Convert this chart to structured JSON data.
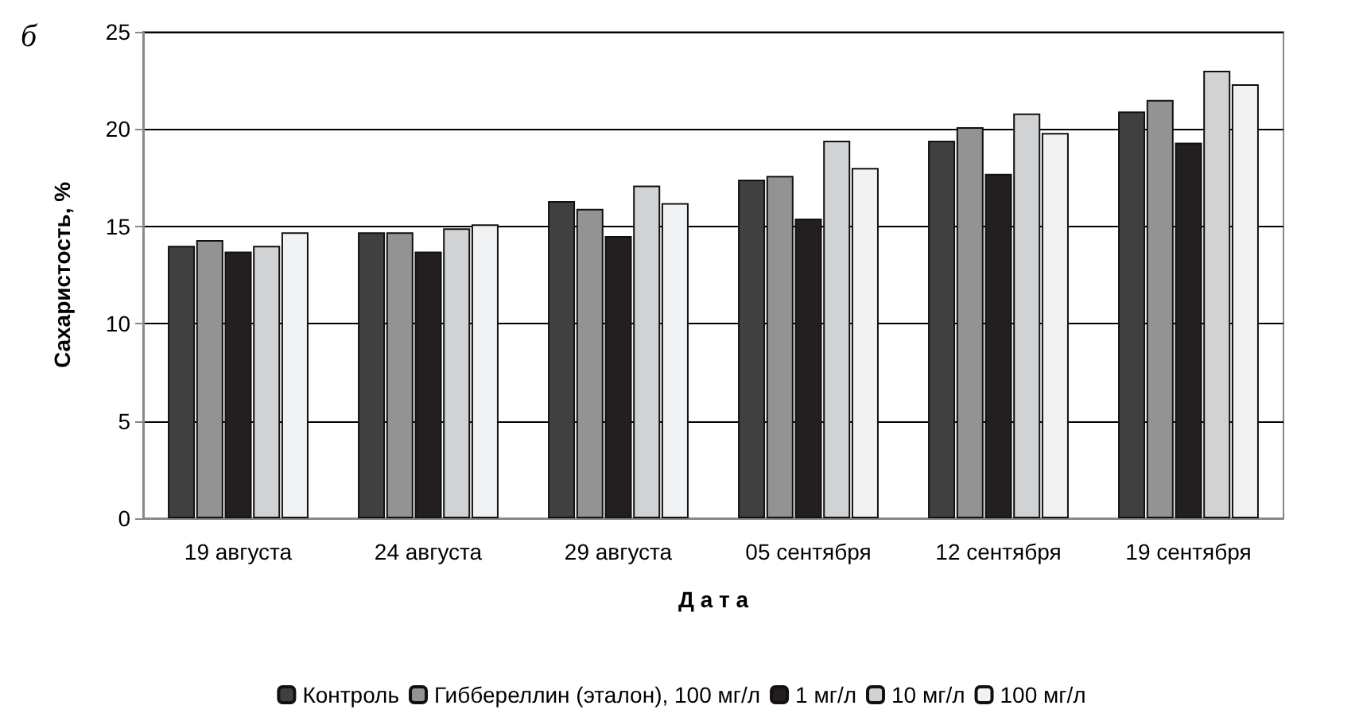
{
  "chart_data": {
    "type": "bar",
    "title": "б",
    "xlabel": "Д а т а",
    "ylabel": "Сахаристость, %",
    "categories": [
      "19 августа",
      "24 августа",
      "29 августа",
      "05 сентября",
      "12 сентября",
      "19 сентября"
    ],
    "series": [
      {
        "name": "Контроль",
        "color": "#404040",
        "values": [
          14.0,
          14.7,
          16.3,
          17.4,
          19.4,
          20.9
        ]
      },
      {
        "name": "Гиббереллин (эталон), 100 мг/л",
        "color": "#939393",
        "values": [
          14.3,
          14.7,
          15.9,
          17.6,
          20.1,
          21.5
        ]
      },
      {
        "name": "1 мг/л",
        "color": "#231f20",
        "values": [
          13.7,
          13.7,
          14.5,
          15.4,
          17.7,
          19.3
        ]
      },
      {
        "name": "10 мг/л",
        "color": "#d1d2d4",
        "values": [
          14.0,
          14.9,
          17.1,
          19.4,
          20.8,
          23.0
        ]
      },
      {
        "name": "100 мг/л",
        "color": "#f1f2f4",
        "values": [
          14.7,
          15.1,
          16.2,
          18.0,
          19.8,
          22.3
        ]
      }
    ],
    "ylim": [
      0,
      25
    ],
    "yticks": [
      0,
      5,
      10,
      15,
      20,
      25
    ],
    "grid": "y",
    "legend": "bottom"
  }
}
